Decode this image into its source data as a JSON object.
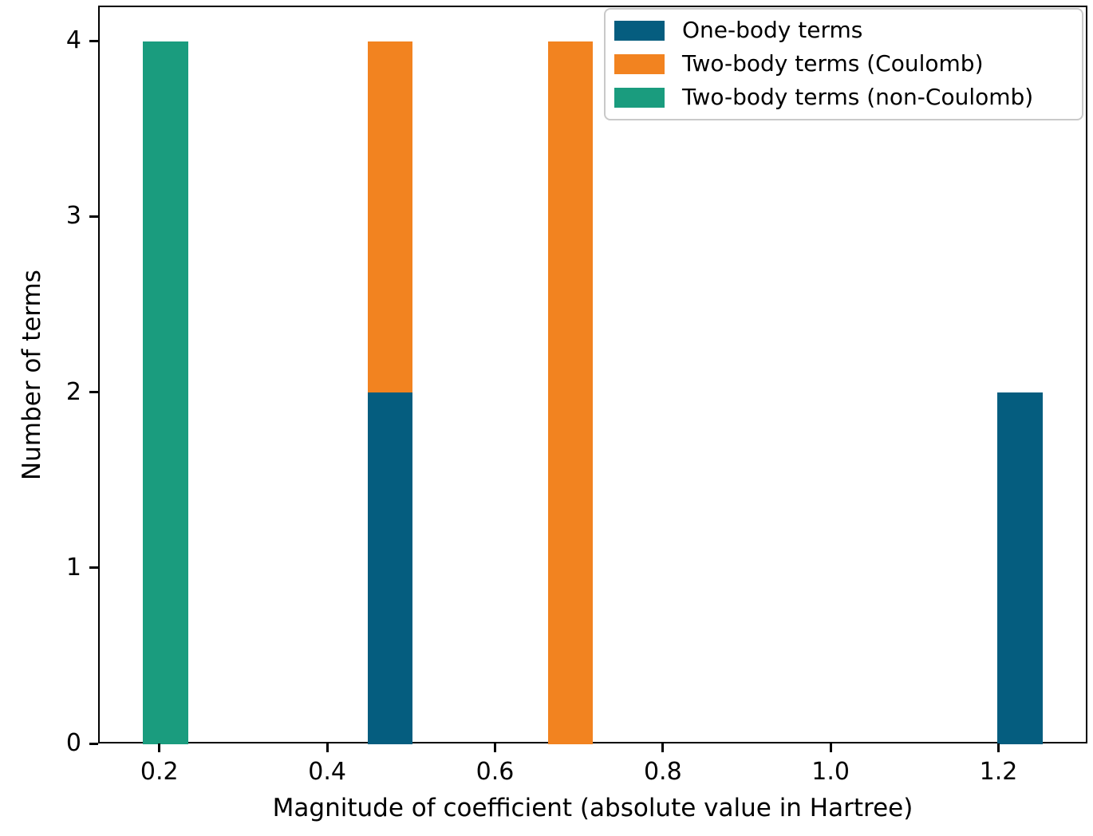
{
  "chart_data": {
    "type": "bar",
    "subtype": "stacked-histogram",
    "title": "",
    "xlabel": "Magnitude of coefficient (absolute value in Hartree)",
    "ylabel": "Number of terms",
    "xlim": [
      0.127,
      1.306
    ],
    "ylim": [
      0,
      4.2
    ],
    "x_ticks": [
      0.2,
      0.4,
      0.6,
      0.8,
      1.0,
      1.2
    ],
    "x_tick_labels": [
      "0.2",
      "0.4",
      "0.6",
      "0.8",
      "1.0",
      "1.2"
    ],
    "y_ticks": [
      0,
      1,
      2,
      3,
      4
    ],
    "y_tick_labels": [
      "0",
      "1",
      "2",
      "3",
      "4"
    ],
    "grid": false,
    "bin_width": 0.0536,
    "series": [
      {
        "name": "One-body terms",
        "color": "#055d7f",
        "bars": [
          {
            "x0": 0.4489,
            "x1": 0.5025,
            "y0": 0,
            "y1": 2
          },
          {
            "x0": 1.1992,
            "x1": 1.2528,
            "y0": 0,
            "y1": 2
          }
        ]
      },
      {
        "name": "Two-body terms (Coulomb)",
        "color": "#f28320",
        "bars": [
          {
            "x0": 0.4489,
            "x1": 0.5025,
            "y0": 2,
            "y1": 4
          },
          {
            "x0": 0.6633,
            "x1": 0.7169,
            "y0": 0,
            "y1": 4
          }
        ]
      },
      {
        "name": "Two-body terms (non-Coulomb)",
        "color": "#1a9c7e",
        "bars": [
          {
            "x0": 0.1809,
            "x1": 0.2345,
            "y0": 0,
            "y1": 4
          }
        ]
      }
    ],
    "legend": {
      "position": "upper right",
      "items": [
        {
          "label": "One-body terms",
          "color": "#055d7f"
        },
        {
          "label": "Two-body terms (Coulomb)",
          "color": "#f28320"
        },
        {
          "label": "Two-body terms (non-Coulomb)",
          "color": "#1a9c7e"
        }
      ]
    },
    "colors": {
      "spine": "#000000",
      "text": "#000000",
      "legend_border": "#c9c9c9",
      "background": "#ffffff"
    }
  }
}
